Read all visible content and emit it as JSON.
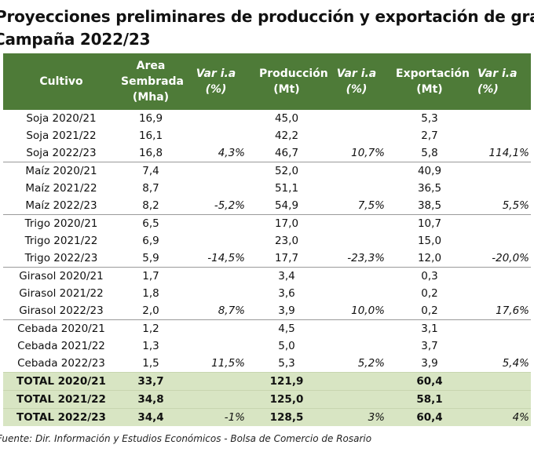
{
  "title_line1": "Proyecciones preliminares de producción y exportación de granos en Argentina",
  "title_line2": "Campaña 2022/23",
  "headers": {
    "cultivo": "Cultivo",
    "area": "Area Sembrada (Mha)",
    "var1": "Var i.a (%)",
    "produccion": "Producción (Mt)",
    "var2": "Var i.a (%)",
    "exportacion": "Exportación (Mt)",
    "var3": "Var i.a (%)"
  },
  "rows": [
    {
      "cultivo": "Soja 2020/21",
      "area": "16,9",
      "var1": "",
      "prod": "45,0",
      "var2": "",
      "exp": "5,3",
      "var3": ""
    },
    {
      "cultivo": "Soja 2021/22",
      "area": "16,1",
      "var1": "",
      "prod": "42,2",
      "var2": "",
      "exp": "2,7",
      "var3": ""
    },
    {
      "cultivo": "Soja 2022/23",
      "area": "16,8",
      "var1": "4,3%",
      "prod": "46,7",
      "var2": "10,7%",
      "exp": "5,8",
      "var3": "114,1%"
    },
    {
      "cultivo": "Maíz 2020/21",
      "area": "7,4",
      "var1": "",
      "prod": "52,0",
      "var2": "",
      "exp": "40,9",
      "var3": ""
    },
    {
      "cultivo": "Maíz 2021/22",
      "area": "8,7",
      "var1": "",
      "prod": "51,1",
      "var2": "",
      "exp": "36,5",
      "var3": ""
    },
    {
      "cultivo": "Maíz 2022/23",
      "area": "8,2",
      "var1": "-5,2%",
      "prod": "54,9",
      "var2": "7,5%",
      "exp": "38,5",
      "var3": "5,5%"
    },
    {
      "cultivo": "Trigo 2020/21",
      "area": "6,5",
      "var1": "",
      "prod": "17,0",
      "var2": "",
      "exp": "10,7",
      "var3": ""
    },
    {
      "cultivo": "Trigo 2021/22",
      "area": "6,9",
      "var1": "",
      "prod": "23,0",
      "var2": "",
      "exp": "15,0",
      "var3": ""
    },
    {
      "cultivo": "Trigo 2022/23",
      "area": "5,9",
      "var1": "-14,5%",
      "prod": "17,7",
      "var2": "-23,3%",
      "exp": "12,0",
      "var3": "-20,0%"
    },
    {
      "cultivo": "Girasol 2020/21",
      "area": "1,7",
      "var1": "",
      "prod": "3,4",
      "var2": "",
      "exp": "0,3",
      "var3": ""
    },
    {
      "cultivo": "Girasol 2021/22",
      "area": "1,8",
      "var1": "",
      "prod": "3,6",
      "var2": "",
      "exp": "0,2",
      "var3": ""
    },
    {
      "cultivo": "Girasol 2022/23",
      "area": "2,0",
      "var1": "8,7%",
      "prod": "3,9",
      "var2": "10,0%",
      "exp": "0,2",
      "var3": "17,6%"
    },
    {
      "cultivo": "Cebada 2020/21",
      "area": "1,2",
      "var1": "",
      "prod": "4,5",
      "var2": "",
      "exp": "3,1",
      "var3": ""
    },
    {
      "cultivo": "Cebada 2021/22",
      "area": "1,3",
      "var1": "",
      "prod": "5,0",
      "var2": "",
      "exp": "3,7",
      "var3": ""
    },
    {
      "cultivo": "Cebada 2022/23",
      "area": "1,5",
      "var1": "11,5%",
      "prod": "5,3",
      "var2": "5,2%",
      "exp": "3,9",
      "var3": "5,4%"
    }
  ],
  "totals": [
    {
      "cultivo": "TOTAL 2020/21",
      "area": "33,7",
      "var1": "",
      "prod": "121,9",
      "var2": "",
      "exp": "60,4",
      "var3": ""
    },
    {
      "cultivo": "TOTAL 2021/22",
      "area": "34,8",
      "var1": "",
      "prod": "125,0",
      "var2": "",
      "exp": "58,1",
      "var3": ""
    },
    {
      "cultivo": "TOTAL 2022/23",
      "area": "34,4",
      "var1": "-1%",
      "prod": "128,5",
      "var2": "3%",
      "exp": "60,4",
      "var3": "4%"
    }
  ],
  "source": "Fuente: Dir. Información y Estudios Económicos - Bolsa de Comercio de Rosario",
  "colors": {
    "header_bg": "#4e7b38",
    "header_text": "#ffffff",
    "total_bg": "#d8e5c3"
  }
}
